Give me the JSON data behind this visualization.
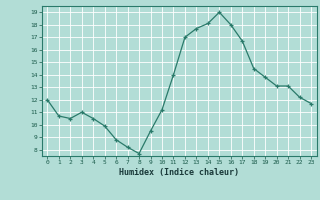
{
  "x": [
    0,
    1,
    2,
    3,
    4,
    5,
    6,
    7,
    8,
    9,
    10,
    11,
    12,
    13,
    14,
    15,
    16,
    17,
    18,
    19,
    20,
    21,
    22,
    23
  ],
  "y": [
    12.0,
    10.7,
    10.5,
    11.0,
    10.5,
    9.9,
    8.8,
    8.2,
    7.7,
    9.5,
    11.2,
    14.0,
    17.0,
    17.7,
    18.1,
    19.0,
    18.0,
    16.7,
    14.5,
    13.8,
    13.1,
    13.1,
    12.2,
    11.7
  ],
  "xlabel": "Humidex (Indice chaleur)",
  "ylim": [
    7.5,
    19.5
  ],
  "xlim": [
    -0.5,
    23.5
  ],
  "yticks": [
    8,
    9,
    10,
    11,
    12,
    13,
    14,
    15,
    16,
    17,
    18,
    19
  ],
  "xticks": [
    0,
    1,
    2,
    3,
    4,
    5,
    6,
    7,
    8,
    9,
    10,
    11,
    12,
    13,
    14,
    15,
    16,
    17,
    18,
    19,
    20,
    21,
    22,
    23
  ],
  "line_color": "#2a7a6a",
  "marker": "+",
  "bg_color": "#b2ddd6",
  "grid_color": "#ffffff",
  "tick_label_color": "#1a5a4a",
  "xlabel_color": "#1a3a3a"
}
